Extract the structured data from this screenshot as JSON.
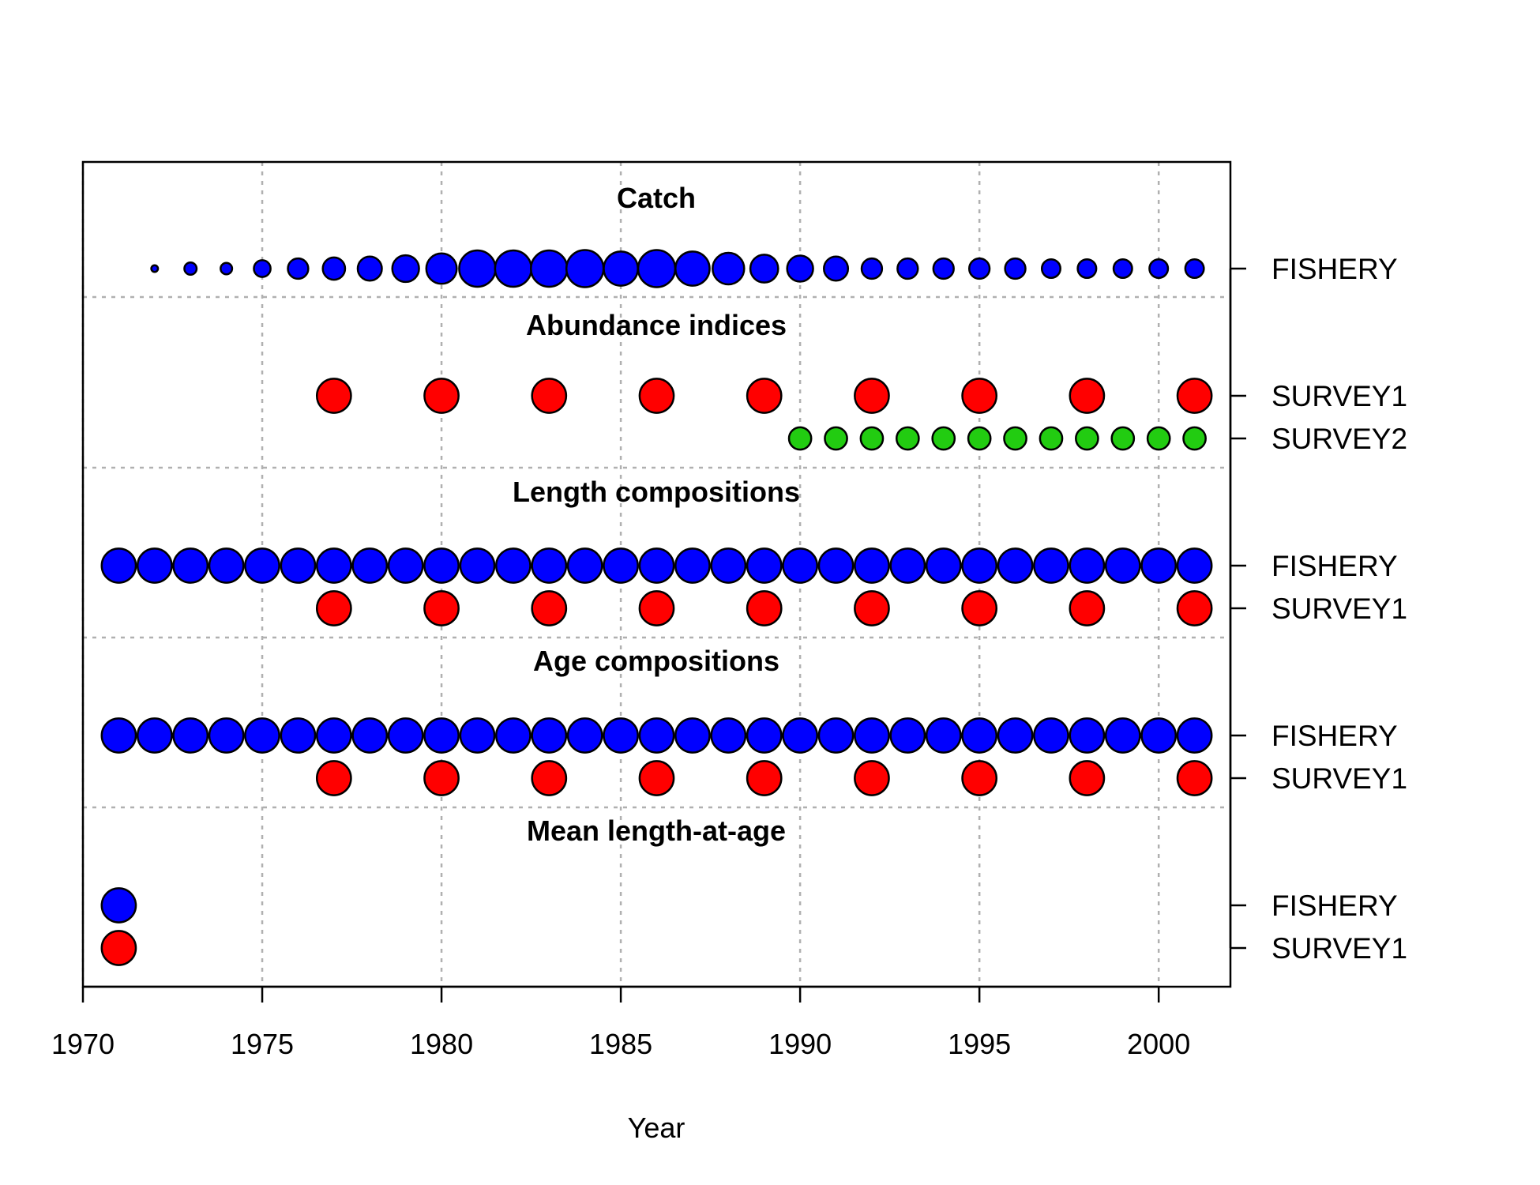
{
  "chart_data": {
    "type": "scatter",
    "xlabel": "Year",
    "xlim": [
      1970,
      2002
    ],
    "xticks": [
      1970,
      1975,
      1980,
      1985,
      1990,
      1995,
      2000
    ],
    "grid": true,
    "colors": {
      "fishery": "#0000ff",
      "survey1": "#ff0000",
      "survey2": "#22cc11"
    },
    "panels": [
      {
        "title": "Catch",
        "rows": [
          {
            "label": "FISHERY",
            "color": "#0000ff",
            "points": [
              {
                "year": 1972,
                "rel_size": 0.18
              },
              {
                "year": 1973,
                "rel_size": 0.33
              },
              {
                "year": 1974,
                "rel_size": 0.31
              },
              {
                "year": 1975,
                "rel_size": 0.45
              },
              {
                "year": 1976,
                "rel_size": 0.55
              },
              {
                "year": 1977,
                "rel_size": 0.6
              },
              {
                "year": 1978,
                "rel_size": 0.65
              },
              {
                "year": 1979,
                "rel_size": 0.72
              },
              {
                "year": 1980,
                "rel_size": 0.82
              },
              {
                "year": 1981,
                "rel_size": 0.98
              },
              {
                "year": 1982,
                "rel_size": 0.98
              },
              {
                "year": 1983,
                "rel_size": 0.98
              },
              {
                "year": 1984,
                "rel_size": 1.0
              },
              {
                "year": 1985,
                "rel_size": 0.92
              },
              {
                "year": 1986,
                "rel_size": 1.0
              },
              {
                "year": 1987,
                "rel_size": 0.92
              },
              {
                "year": 1988,
                "rel_size": 0.85
              },
              {
                "year": 1989,
                "rel_size": 0.75
              },
              {
                "year": 1990,
                "rel_size": 0.7
              },
              {
                "year": 1991,
                "rel_size": 0.65
              },
              {
                "year": 1992,
                "rel_size": 0.55
              },
              {
                "year": 1993,
                "rel_size": 0.55
              },
              {
                "year": 1994,
                "rel_size": 0.55
              },
              {
                "year": 1995,
                "rel_size": 0.55
              },
              {
                "year": 1996,
                "rel_size": 0.55
              },
              {
                "year": 1997,
                "rel_size": 0.5
              },
              {
                "year": 1998,
                "rel_size": 0.5
              },
              {
                "year": 1999,
                "rel_size": 0.5
              },
              {
                "year": 2000,
                "rel_size": 0.5
              },
              {
                "year": 2001,
                "rel_size": 0.5
              }
            ]
          }
        ]
      },
      {
        "title": "Abundance indices",
        "rows": [
          {
            "label": "SURVEY1",
            "color": "#ff0000",
            "points": [
              {
                "year": 1977,
                "rel_size": 0.92
              },
              {
                "year": 1980,
                "rel_size": 0.92
              },
              {
                "year": 1983,
                "rel_size": 0.92
              },
              {
                "year": 1986,
                "rel_size": 0.92
              },
              {
                "year": 1989,
                "rel_size": 0.92
              },
              {
                "year": 1992,
                "rel_size": 0.92
              },
              {
                "year": 1995,
                "rel_size": 0.92
              },
              {
                "year": 1998,
                "rel_size": 0.92
              },
              {
                "year": 2001,
                "rel_size": 0.92
              }
            ]
          },
          {
            "label": "SURVEY2",
            "color": "#22cc11",
            "points": [
              {
                "year": 1990,
                "rel_size": 0.6
              },
              {
                "year": 1991,
                "rel_size": 0.6
              },
              {
                "year": 1992,
                "rel_size": 0.6
              },
              {
                "year": 1993,
                "rel_size": 0.6
              },
              {
                "year": 1994,
                "rel_size": 0.6
              },
              {
                "year": 1995,
                "rel_size": 0.6
              },
              {
                "year": 1996,
                "rel_size": 0.6
              },
              {
                "year": 1997,
                "rel_size": 0.6
              },
              {
                "year": 1998,
                "rel_size": 0.6
              },
              {
                "year": 1999,
                "rel_size": 0.6
              },
              {
                "year": 2000,
                "rel_size": 0.6
              },
              {
                "year": 2001,
                "rel_size": 0.6
              }
            ]
          }
        ]
      },
      {
        "title": "Length compositions",
        "rows": [
          {
            "label": "FISHERY",
            "color": "#0000ff",
            "points": [
              {
                "year": 1971,
                "rel_size": 0.92
              },
              {
                "year": 1972,
                "rel_size": 0.92
              },
              {
                "year": 1973,
                "rel_size": 0.92
              },
              {
                "year": 1974,
                "rel_size": 0.92
              },
              {
                "year": 1975,
                "rel_size": 0.92
              },
              {
                "year": 1976,
                "rel_size": 0.92
              },
              {
                "year": 1977,
                "rel_size": 0.92
              },
              {
                "year": 1978,
                "rel_size": 0.92
              },
              {
                "year": 1979,
                "rel_size": 0.92
              },
              {
                "year": 1980,
                "rel_size": 0.92
              },
              {
                "year": 1981,
                "rel_size": 0.92
              },
              {
                "year": 1982,
                "rel_size": 0.92
              },
              {
                "year": 1983,
                "rel_size": 0.92
              },
              {
                "year": 1984,
                "rel_size": 0.92
              },
              {
                "year": 1985,
                "rel_size": 0.92
              },
              {
                "year": 1986,
                "rel_size": 0.92
              },
              {
                "year": 1987,
                "rel_size": 0.92
              },
              {
                "year": 1988,
                "rel_size": 0.92
              },
              {
                "year": 1989,
                "rel_size": 0.92
              },
              {
                "year": 1990,
                "rel_size": 0.92
              },
              {
                "year": 1991,
                "rel_size": 0.92
              },
              {
                "year": 1992,
                "rel_size": 0.92
              },
              {
                "year": 1993,
                "rel_size": 0.92
              },
              {
                "year": 1994,
                "rel_size": 0.92
              },
              {
                "year": 1995,
                "rel_size": 0.92
              },
              {
                "year": 1996,
                "rel_size": 0.92
              },
              {
                "year": 1997,
                "rel_size": 0.92
              },
              {
                "year": 1998,
                "rel_size": 0.92
              },
              {
                "year": 1999,
                "rel_size": 0.92
              },
              {
                "year": 2000,
                "rel_size": 0.92
              },
              {
                "year": 2001,
                "rel_size": 0.92
              }
            ]
          },
          {
            "label": "SURVEY1",
            "color": "#ff0000",
            "points": [
              {
                "year": 1977,
                "rel_size": 0.92
              },
              {
                "year": 1980,
                "rel_size": 0.92
              },
              {
                "year": 1983,
                "rel_size": 0.92
              },
              {
                "year": 1986,
                "rel_size": 0.92
              },
              {
                "year": 1989,
                "rel_size": 0.92
              },
              {
                "year": 1992,
                "rel_size": 0.92
              },
              {
                "year": 1995,
                "rel_size": 0.92
              },
              {
                "year": 1998,
                "rel_size": 0.92
              },
              {
                "year": 2001,
                "rel_size": 0.92
              }
            ]
          }
        ]
      },
      {
        "title": "Age compositions",
        "rows": [
          {
            "label": "FISHERY",
            "color": "#0000ff",
            "points": [
              {
                "year": 1971,
                "rel_size": 0.92
              },
              {
                "year": 1972,
                "rel_size": 0.92
              },
              {
                "year": 1973,
                "rel_size": 0.92
              },
              {
                "year": 1974,
                "rel_size": 0.92
              },
              {
                "year": 1975,
                "rel_size": 0.92
              },
              {
                "year": 1976,
                "rel_size": 0.92
              },
              {
                "year": 1977,
                "rel_size": 0.92
              },
              {
                "year": 1978,
                "rel_size": 0.92
              },
              {
                "year": 1979,
                "rel_size": 0.92
              },
              {
                "year": 1980,
                "rel_size": 0.92
              },
              {
                "year": 1981,
                "rel_size": 0.92
              },
              {
                "year": 1982,
                "rel_size": 0.92
              },
              {
                "year": 1983,
                "rel_size": 0.92
              },
              {
                "year": 1984,
                "rel_size": 0.92
              },
              {
                "year": 1985,
                "rel_size": 0.92
              },
              {
                "year": 1986,
                "rel_size": 0.92
              },
              {
                "year": 1987,
                "rel_size": 0.92
              },
              {
                "year": 1988,
                "rel_size": 0.92
              },
              {
                "year": 1989,
                "rel_size": 0.92
              },
              {
                "year": 1990,
                "rel_size": 0.92
              },
              {
                "year": 1991,
                "rel_size": 0.92
              },
              {
                "year": 1992,
                "rel_size": 0.92
              },
              {
                "year": 1993,
                "rel_size": 0.92
              },
              {
                "year": 1994,
                "rel_size": 0.92
              },
              {
                "year": 1995,
                "rel_size": 0.92
              },
              {
                "year": 1996,
                "rel_size": 0.92
              },
              {
                "year": 1997,
                "rel_size": 0.92
              },
              {
                "year": 1998,
                "rel_size": 0.92
              },
              {
                "year": 1999,
                "rel_size": 0.92
              },
              {
                "year": 2000,
                "rel_size": 0.92
              },
              {
                "year": 2001,
                "rel_size": 0.92
              }
            ]
          },
          {
            "label": "SURVEY1",
            "color": "#ff0000",
            "points": [
              {
                "year": 1977,
                "rel_size": 0.92
              },
              {
                "year": 1980,
                "rel_size": 0.92
              },
              {
                "year": 1983,
                "rel_size": 0.92
              },
              {
                "year": 1986,
                "rel_size": 0.92
              },
              {
                "year": 1989,
                "rel_size": 0.92
              },
              {
                "year": 1992,
                "rel_size": 0.92
              },
              {
                "year": 1995,
                "rel_size": 0.92
              },
              {
                "year": 1998,
                "rel_size": 0.92
              },
              {
                "year": 2001,
                "rel_size": 0.92
              }
            ]
          }
        ]
      },
      {
        "title": "Mean length-at-age",
        "rows": [
          {
            "label": "FISHERY",
            "color": "#0000ff",
            "points": [
              {
                "year": 1971,
                "rel_size": 0.92
              }
            ]
          },
          {
            "label": "SURVEY1",
            "color": "#ff0000",
            "points": [
              {
                "year": 1971,
                "rel_size": 0.92
              }
            ]
          }
        ]
      }
    ]
  }
}
